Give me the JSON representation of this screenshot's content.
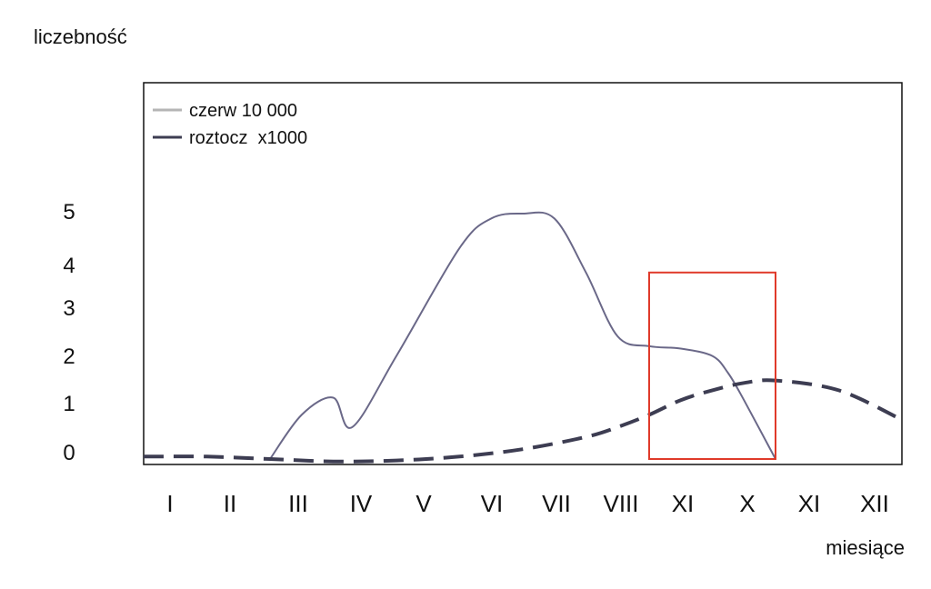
{
  "chart_data": {
    "type": "line",
    "ylabel": "liczebność",
    "xlabel": "miesiące",
    "categories": [
      "I",
      "II",
      "III",
      "IV",
      "V",
      "VI",
      "VII",
      "VIII",
      "XI",
      "X",
      "XI",
      "XII"
    ],
    "y_ticks": [
      "0",
      "1",
      "2",
      "3",
      "4",
      "5"
    ],
    "ylim": [
      0,
      5.5
    ],
    "legend_position": "top-left",
    "grid": false,
    "series": [
      {
        "name": "czerw 10 000",
        "color": "#6a6888",
        "style": "solid",
        "x": [
          2,
          2.5,
          3,
          3.3,
          4,
          5,
          5.5,
          6,
          6.5,
          7,
          7.5,
          8,
          8.5,
          9,
          9.25,
          9.5,
          10
        ],
        "y": [
          0,
          0.9,
          1.25,
          0.65,
          2.1,
          4.3,
          4.9,
          5.0,
          4.9,
          3.8,
          2.5,
          2.3,
          2.25,
          2.1,
          1.75,
          1.2,
          0
        ]
      },
      {
        "name": "roztocz  x1000",
        "color": "#3d3d52",
        "style": "dashed",
        "x": [
          0,
          1,
          2,
          3,
          4,
          5,
          6,
          7,
          7.5,
          8,
          8.5,
          9,
          9.5,
          10,
          11,
          12
        ],
        "y": [
          0.05,
          0.05,
          0.0,
          -0.05,
          -0.03,
          0.05,
          0.2,
          0.45,
          0.65,
          0.9,
          1.2,
          1.4,
          1.55,
          1.6,
          1.4,
          0.8
        ]
      }
    ],
    "highlight_box": {
      "x_start": 8,
      "x_end": 10,
      "y_start": 0,
      "y_end": 3.8,
      "color": "#e03a2a"
    }
  }
}
